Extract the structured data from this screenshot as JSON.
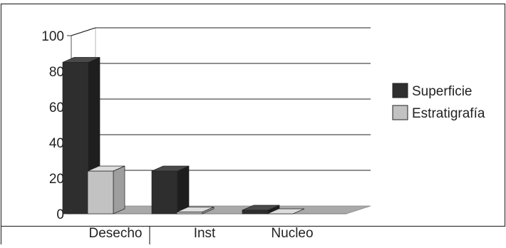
{
  "chart_data": {
    "type": "bar",
    "title": "",
    "xlabel": "",
    "ylabel": "",
    "categories": [
      "Desecho",
      "Inst",
      "Nucleo"
    ],
    "series": [
      {
        "name": "Superficie",
        "values": [
          85,
          24,
          2
        ],
        "color": "#2b2b2b"
      },
      {
        "name": "Estratigrafía",
        "values": [
          24,
          1,
          0
        ],
        "color": "#c4c4c4"
      }
    ],
    "yticks": [
      0,
      20,
      40,
      60,
      80,
      100
    ],
    "ylim": [
      0,
      100
    ],
    "grid": true,
    "legend_position": "right",
    "three_d": true
  }
}
